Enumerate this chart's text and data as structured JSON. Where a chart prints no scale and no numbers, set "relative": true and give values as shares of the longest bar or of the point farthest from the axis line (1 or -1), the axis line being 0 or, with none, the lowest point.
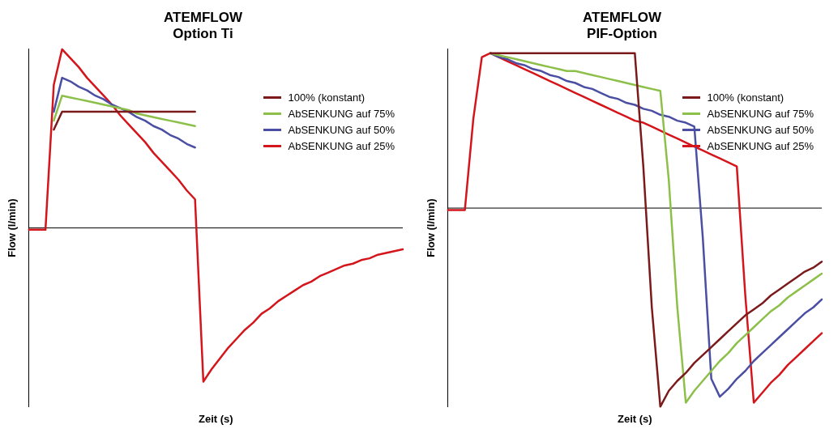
{
  "chart_data": [
    {
      "type": "line",
      "title": "ATEMFLOW\nOption Ti",
      "xlabel": "Zeit (s)",
      "ylabel": "Flow (l/min)",
      "relative": true,
      "legend": "right",
      "marker": "none",
      "line_style": "solid",
      "grid": false,
      "categories": [
        null,
        null,
        null,
        null,
        null,
        null,
        null,
        null,
        null,
        null,
        null,
        null,
        null,
        null,
        null,
        null,
        null,
        null,
        null,
        null,
        null,
        null,
        null,
        null,
        null,
        null,
        null,
        null,
        null,
        null,
        null,
        null,
        null,
        null,
        null,
        null,
        null,
        null,
        null,
        null,
        null,
        null,
        null,
        null,
        null,
        null
      ],
      "series": [
        {
          "name": "100% (konstant)",
          "color": "#7b1a1a",
          "values": [
            null,
            null,
            null,
            0.55,
            0.65,
            0.65,
            0.65,
            0.65,
            0.65,
            0.65,
            0.65,
            0.65,
            0.65,
            0.65,
            0.65,
            0.65,
            0.65,
            0.65,
            0.65,
            0.65,
            0.65,
            null,
            null,
            null,
            null,
            null,
            null,
            null,
            null,
            null,
            null,
            null,
            null,
            null,
            null,
            null,
            null,
            null,
            null,
            null,
            null,
            null,
            null,
            null,
            null,
            null
          ]
        },
        {
          "name": "AbSENKUNG auf 75%",
          "color": "#8dc04a",
          "values": [
            null,
            null,
            null,
            0.6,
            0.74,
            0.73,
            0.72,
            0.71,
            0.7,
            0.69,
            0.68,
            0.67,
            0.66,
            0.64,
            0.63,
            0.62,
            0.61,
            0.6,
            0.59,
            0.58,
            0.57,
            null,
            null,
            null,
            null,
            null,
            null,
            null,
            null,
            null,
            null,
            null,
            null,
            null,
            null,
            null,
            null,
            null,
            null,
            null,
            null,
            null,
            null,
            null,
            null,
            null
          ]
        },
        {
          "name": "AbSENKUNG auf 50%",
          "color": "#4a4fa3",
          "values": [
            null,
            null,
            null,
            0.65,
            0.84,
            0.82,
            0.79,
            0.77,
            0.74,
            0.72,
            0.69,
            0.67,
            0.65,
            0.62,
            0.6,
            0.57,
            0.55,
            0.52,
            0.5,
            0.47,
            0.45,
            null,
            null,
            null,
            null,
            null,
            null,
            null,
            null,
            null,
            null,
            null,
            null,
            null,
            null,
            null,
            null,
            null,
            null,
            null,
            null,
            null,
            null,
            null,
            null,
            null
          ]
        },
        {
          "name": "AbSENKUNG auf 25%",
          "color": "#d4161c",
          "values": [
            -0.01,
            -0.01,
            -0.01,
            0.8,
            1.0,
            0.95,
            0.9,
            0.84,
            0.79,
            0.74,
            0.69,
            0.63,
            0.58,
            0.53,
            0.48,
            0.42,
            0.37,
            0.32,
            0.27,
            0.21,
            0.16,
            -0.86,
            -0.79,
            -0.73,
            -0.67,
            -0.62,
            -0.57,
            -0.53,
            -0.48,
            -0.45,
            -0.41,
            -0.38,
            -0.35,
            -0.32,
            -0.3,
            -0.27,
            -0.25,
            -0.23,
            -0.21,
            -0.2,
            -0.18,
            -0.17,
            -0.15,
            -0.14,
            -0.13,
            -0.12
          ]
        }
      ]
    },
    {
      "type": "line",
      "title": "ATEMFLOW\nPIF-Option",
      "xlabel": "Zeit (s)",
      "ylabel": "Flow (l/min)",
      "relative": true,
      "legend": "right",
      "marker": "none",
      "line_style": "solid",
      "grid": false,
      "categories": [
        null,
        null,
        null,
        null,
        null,
        null,
        null,
        null,
        null,
        null,
        null,
        null,
        null,
        null,
        null,
        null,
        null,
        null,
        null,
        null,
        null,
        null,
        null,
        null,
        null,
        null,
        null,
        null,
        null,
        null,
        null,
        null,
        null,
        null,
        null,
        null,
        null,
        null,
        null,
        null,
        null,
        null,
        null,
        null,
        null
      ],
      "series": [
        {
          "name": "100% (konstant)",
          "color": "#7b1a1a",
          "values": [
            null,
            null,
            null,
            null,
            null,
            0.78,
            0.78,
            0.78,
            0.78,
            0.78,
            0.78,
            0.78,
            0.78,
            0.78,
            0.78,
            0.78,
            0.78,
            0.78,
            0.78,
            0.78,
            0.78,
            0.78,
            0.78,
            0.21,
            -0.5,
            -1.0,
            -0.92,
            -0.87,
            -0.83,
            -0.78,
            -0.74,
            -0.7,
            -0.66,
            -0.62,
            -0.58,
            -0.54,
            -0.51,
            -0.48,
            -0.44,
            -0.41,
            -0.38,
            -0.35,
            -0.32,
            -0.3,
            -0.27
          ]
        },
        {
          "name": "AbSENKUNG auf 75%",
          "color": "#8dc04a",
          "values": [
            null,
            null,
            null,
            null,
            null,
            0.78,
            0.77,
            0.76,
            0.75,
            0.74,
            0.73,
            0.72,
            0.71,
            0.7,
            0.69,
            0.69,
            0.68,
            0.67,
            0.66,
            0.65,
            0.64,
            0.63,
            0.62,
            0.61,
            0.6,
            0.59,
            0.14,
            -0.5,
            -0.98,
            -0.92,
            -0.87,
            -0.82,
            -0.77,
            -0.73,
            -0.68,
            -0.64,
            -0.6,
            -0.56,
            -0.52,
            -0.49,
            -0.45,
            -0.42,
            -0.39,
            -0.36,
            -0.33
          ]
        },
        {
          "name": "AbSENKUNG auf 50%",
          "color": "#4a4fa3",
          "values": [
            null,
            null,
            null,
            null,
            null,
            0.78,
            0.76,
            0.75,
            0.73,
            0.72,
            0.7,
            0.69,
            0.67,
            0.66,
            0.64,
            0.63,
            0.61,
            0.6,
            0.58,
            0.56,
            0.55,
            0.53,
            0.52,
            0.5,
            0.49,
            0.47,
            0.46,
            0.44,
            0.43,
            0.41,
            -0.15,
            -0.86,
            -0.95,
            -0.91,
            -0.86,
            -0.82,
            -0.77,
            -0.73,
            -0.69,
            -0.65,
            -0.61,
            -0.57,
            -0.53,
            -0.5,
            -0.46
          ]
        },
        {
          "name": "AbSENKUNG auf 25%",
          "color": "#d4161c",
          "values": [
            -0.01,
            -0.01,
            -0.01,
            0.45,
            0.76,
            0.78,
            0.76,
            0.74,
            0.72,
            0.7,
            0.68,
            0.66,
            0.64,
            0.62,
            0.6,
            0.58,
            0.56,
            0.54,
            0.52,
            0.5,
            0.48,
            0.46,
            0.44,
            0.43,
            0.41,
            0.39,
            0.37,
            0.35,
            0.33,
            0.31,
            0.29,
            0.27,
            0.25,
            0.23,
            0.21,
            -0.44,
            -0.98,
            -0.93,
            -0.88,
            -0.84,
            -0.79,
            -0.75,
            -0.71,
            -0.67,
            -0.63
          ]
        }
      ]
    }
  ]
}
